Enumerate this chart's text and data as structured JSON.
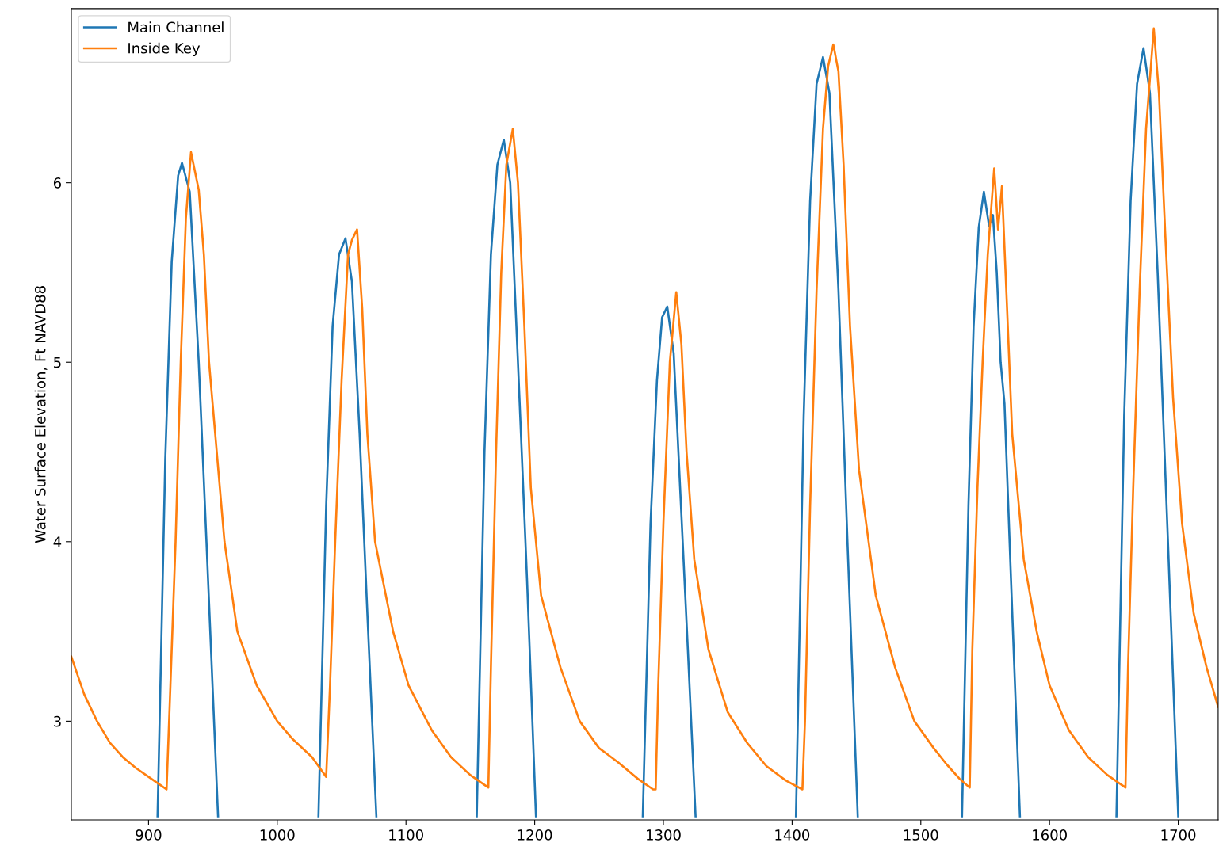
{
  "chart_data": {
    "type": "line",
    "ylabel": "Water Surface Elevation, Ft NAVD88",
    "xlim": [
      840,
      1731
    ],
    "ylim": [
      2.45,
      6.97
    ],
    "xticks": [
      900,
      1000,
      1100,
      1200,
      1300,
      1400,
      1500,
      1600,
      1700
    ],
    "yticks": [
      3,
      4,
      5,
      6
    ],
    "grid": false,
    "legend": "top left",
    "marker": "none",
    "line_style": "solid",
    "series": [
      {
        "name": "Main Channel",
        "color": "#1f77b4",
        "x": [
          907,
          913,
          918,
          923,
          926,
          932,
          939,
          945,
          954,
          990,
          1032,
          1038,
          1043,
          1048,
          1053,
          1058,
          1064,
          1070,
          1077,
          1110,
          1155,
          1161,
          1166,
          1171,
          1176,
          1181,
          1187,
          1194,
          1201,
          1240,
          1284,
          1290,
          1295,
          1299,
          1303,
          1308,
          1313,
          1319,
          1325,
          1360,
          1403,
          1409,
          1414,
          1419,
          1424,
          1429,
          1436,
          1443,
          1451,
          1490,
          1532,
          1537,
          1541,
          1545,
          1549,
          1553,
          1556,
          1559,
          1562,
          1565,
          1570,
          1577,
          1610,
          1652,
          1658,
          1663,
          1668,
          1673,
          1678,
          1684,
          1692,
          1700
        ],
        "values": [
          2.47,
          4.46,
          5.56,
          6.04,
          6.11,
          5.95,
          5.0,
          4.0,
          2.47,
          null,
          2.47,
          4.2,
          5.2,
          5.6,
          5.69,
          5.45,
          4.6,
          3.6,
          2.47,
          null,
          2.47,
          4.5,
          5.6,
          6.1,
          6.24,
          6.0,
          5.0,
          3.8,
          2.47,
          null,
          2.47,
          4.1,
          4.9,
          5.25,
          5.31,
          5.05,
          4.3,
          3.4,
          2.47,
          null,
          2.47,
          4.7,
          5.9,
          6.55,
          6.7,
          6.5,
          5.4,
          4.0,
          2.47,
          null,
          2.47,
          4.2,
          5.2,
          5.75,
          5.95,
          5.76,
          5.82,
          5.5,
          5.0,
          4.77,
          3.8,
          2.47,
          null,
          2.47,
          4.7,
          5.9,
          6.55,
          6.75,
          6.5,
          5.5,
          4.0,
          2.47
        ]
      },
      {
        "name": "Inside Key",
        "color": "#ff7f0e",
        "x": [
          840,
          850,
          860,
          870,
          880,
          890,
          900,
          910,
          914,
          917,
          921,
          925,
          929,
          933,
          939,
          943,
          947,
          959,
          969,
          984,
          1000,
          1012,
          1027,
          1038,
          1041,
          1045,
          1050,
          1055,
          1058,
          1062,
          1066,
          1070,
          1076,
          1090,
          1102,
          1120,
          1135,
          1150,
          1162,
          1164,
          1166,
          1170,
          1174,
          1178,
          1183,
          1187,
          1192,
          1197,
          1205,
          1220,
          1235,
          1250,
          1265,
          1280,
          1292,
          1294,
          1296,
          1300,
          1305,
          1310,
          1314,
          1318,
          1324,
          1335,
          1350,
          1365,
          1380,
          1395,
          1408,
          1410,
          1414,
          1419,
          1424,
          1428,
          1432,
          1436,
          1440,
          1445,
          1452,
          1465,
          1480,
          1495,
          1510,
          1520,
          1530,
          1538,
          1540,
          1544,
          1548,
          1552,
          1557,
          1560,
          1563,
          1567,
          1571,
          1580,
          1590,
          1600,
          1615,
          1630,
          1645,
          1655,
          1659,
          1661,
          1665,
          1670,
          1675,
          1681,
          1685,
          1690,
          1696,
          1703,
          1712,
          1722,
          1731
        ],
        "values": [
          3.36,
          3.15,
          3.0,
          2.88,
          2.8,
          2.74,
          2.69,
          2.64,
          2.62,
          3.2,
          4.0,
          5.0,
          5.8,
          6.17,
          5.96,
          5.6,
          5.0,
          4.0,
          3.5,
          3.2,
          3.0,
          2.9,
          2.8,
          2.69,
          3.2,
          4.0,
          4.9,
          5.6,
          5.68,
          5.74,
          5.3,
          4.6,
          4.0,
          3.5,
          3.2,
          2.95,
          2.8,
          2.7,
          2.64,
          2.63,
          3.3,
          4.5,
          5.5,
          6.1,
          6.3,
          6.0,
          5.2,
          4.3,
          3.7,
          3.3,
          3.0,
          2.85,
          2.77,
          2.68,
          2.62,
          2.62,
          3.2,
          4.1,
          5.0,
          5.39,
          5.1,
          4.5,
          3.9,
          3.4,
          3.05,
          2.88,
          2.75,
          2.67,
          2.62,
          3.0,
          4.2,
          5.4,
          6.3,
          6.65,
          6.77,
          6.62,
          6.1,
          5.2,
          4.4,
          3.7,
          3.3,
          3.0,
          2.85,
          2.76,
          2.68,
          2.63,
          3.4,
          4.3,
          5.0,
          5.6,
          6.08,
          5.74,
          5.98,
          5.3,
          4.6,
          3.9,
          3.5,
          3.2,
          2.95,
          2.8,
          2.7,
          2.65,
          2.63,
          3.3,
          4.3,
          5.4,
          6.3,
          6.86,
          6.5,
          5.7,
          4.8,
          4.1,
          3.6,
          3.3,
          3.08
        ]
      }
    ]
  }
}
